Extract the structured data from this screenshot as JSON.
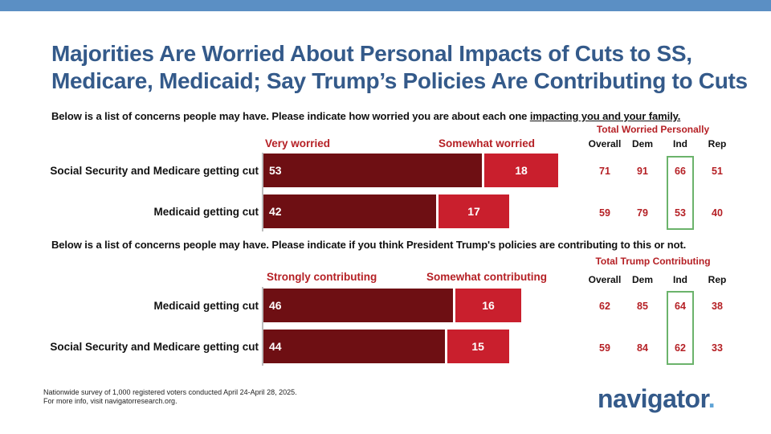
{
  "title": {
    "line1": "Majorities Are Worried About Personal Impacts of Cuts to SS,",
    "line2": "Medicare, Medicaid; Say Trump’s Policies Are Contributing to Cuts"
  },
  "colors": {
    "dark_bar": "#6e0f13",
    "light_bar": "#c91f2d",
    "accent_text": "#b52025",
    "title": "#345a8a",
    "ind_box": "#6bb36b"
  },
  "chart_data": [
    {
      "type": "bar",
      "orientation": "horizontal",
      "stacked": true,
      "question_pre": "Below is a list of concerns people may have. Please indicate how worried you are about each one ",
      "question_underlined": "impacting you and your family.",
      "categories": [
        "Social Security and Medicare getting cut",
        "Medicaid getting cut"
      ],
      "series": [
        {
          "name": "Very worried",
          "values": [
            53,
            42
          ]
        },
        {
          "name": "Somewhat worried",
          "values": [
            18,
            17
          ]
        }
      ],
      "summary_table": {
        "title": "Total Worried Personally",
        "columns": [
          "Overall",
          "Dem",
          "Ind",
          "Rep"
        ],
        "rows": [
          [
            71,
            91,
            66,
            51
          ],
          [
            59,
            79,
            53,
            40
          ]
        ],
        "highlight_column": "Ind"
      }
    },
    {
      "type": "bar",
      "orientation": "horizontal",
      "stacked": true,
      "question": "Below is a list of concerns people may have. Please indicate if you think President Trump's policies are contributing to this or not.",
      "categories": [
        "Medicaid getting cut",
        "Social Security and Medicare getting cut"
      ],
      "series": [
        {
          "name": "Strongly contributing",
          "values": [
            46,
            44
          ]
        },
        {
          "name": "Somewhat contributing",
          "values": [
            16,
            15
          ]
        }
      ],
      "summary_table": {
        "title": "Total Trump Contributing",
        "columns": [
          "Overall",
          "Dem",
          "Ind",
          "Rep"
        ],
        "rows": [
          [
            62,
            85,
            64,
            38
          ],
          [
            59,
            84,
            62,
            33
          ]
        ],
        "highlight_column": "Ind"
      }
    }
  ],
  "footnote": {
    "line1": "Nationwide survey of 1,000 registered voters conducted April 24-April 28, 2025.",
    "line2": "For more info, visit navigatorresearch.org."
  },
  "logo": {
    "text": "navigator",
    "dot": "."
  }
}
